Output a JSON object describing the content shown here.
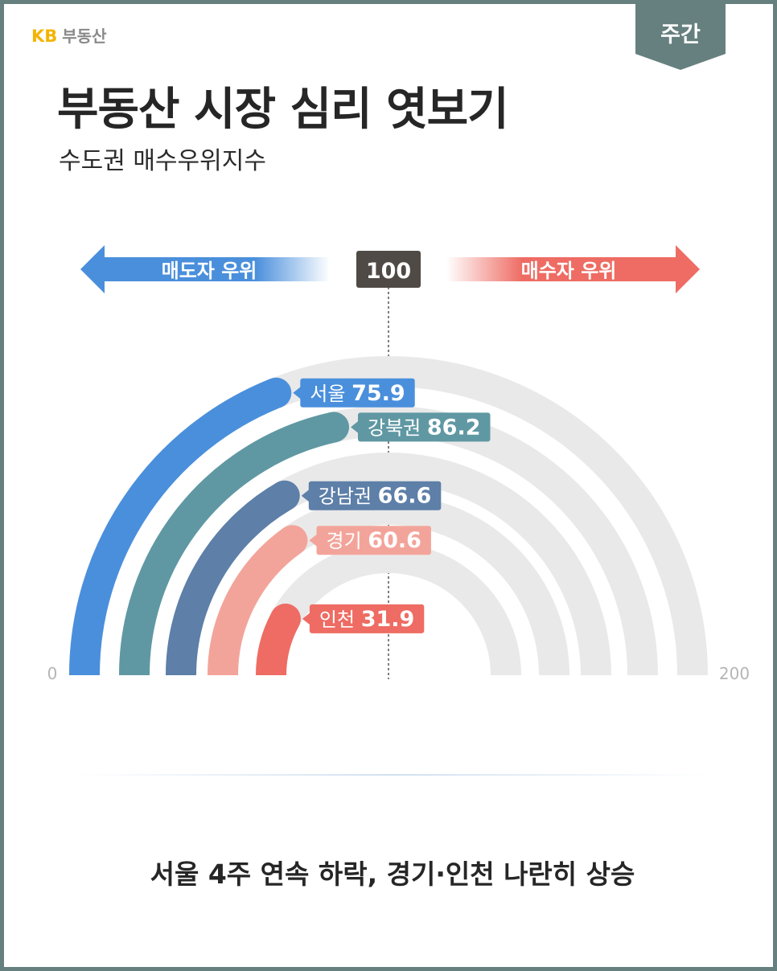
{
  "brand": {
    "kb": "KB",
    "name": "부동산"
  },
  "tag": {
    "label": "주간",
    "color": "#66807f"
  },
  "header": {
    "title": "부동산 시장 심리 엿보기",
    "subtitle": "수도권 매수우위지수"
  },
  "legend": {
    "left_label": "매도자 우위",
    "right_label": "매수자 우위",
    "center_label": "100",
    "left_color": "#4a8fdc",
    "right_color": "#ee6c63"
  },
  "caption": "서울 4주 연속 하락, 경기·인천 나란히 상승",
  "chart_data": {
    "type": "radial-bar",
    "min": 0,
    "max": 200,
    "min_label": "0",
    "max_label": "200",
    "reference": 100,
    "series": [
      {
        "name": "서울",
        "value": 75.9,
        "label": "75.9",
        "color": "#4a8fdc"
      },
      {
        "name": "강북권",
        "value": 86.2,
        "label": "86.2",
        "color": "#5f98a3"
      },
      {
        "name": "강남권",
        "value": 66.6,
        "label": "66.6",
        "color": "#5d7fa8"
      },
      {
        "name": "경기",
        "value": 60.6,
        "label": "60.6",
        "color": "#f3a49a"
      },
      {
        "name": "인천",
        "value": 31.9,
        "label": "31.9",
        "color": "#ee6c63"
      }
    ]
  }
}
